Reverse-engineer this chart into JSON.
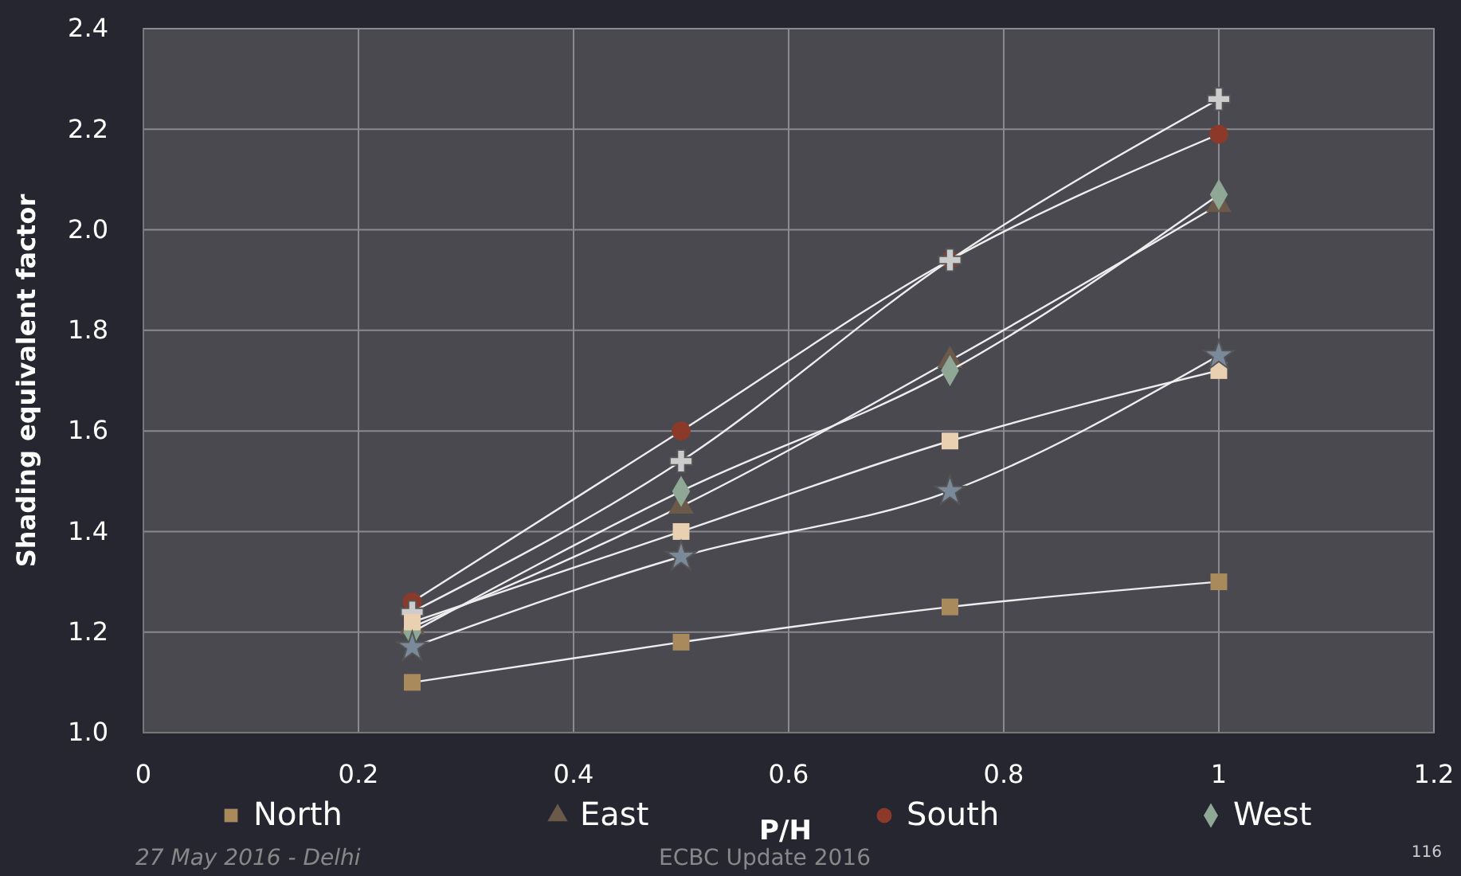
{
  "chart_data": {
    "type": "line",
    "xlabel": "P/H",
    "ylabel": "Shading equivalent factor",
    "xlim": [
      0,
      1.2
    ],
    "xticks": [
      0,
      0.2,
      0.4,
      0.6,
      0.8,
      1,
      1.2
    ],
    "ylim": [
      1,
      2.4
    ],
    "yticks": [
      {
        "value": 1,
        "label": "1.0"
      },
      1.2,
      1.4,
      1.6,
      1.8,
      {
        "value": 2,
        "label": "2.0"
      },
      2.2,
      2.4
    ],
    "x": [
      0.25,
      0.5,
      0.75,
      1
    ],
    "series": [
      {
        "name": "North",
        "color": "#a88a5c",
        "marker": "square",
        "values": [
          1.1,
          1.18,
          1.25,
          1.3
        ]
      },
      {
        "name": "East",
        "color": "#6b5a4a",
        "marker": "triangle",
        "values": [
          1.21,
          1.45,
          1.74,
          2.05
        ]
      },
      {
        "name": "South",
        "color": "#8b3a2a",
        "marker": "circle",
        "values": [
          1.26,
          1.6,
          1.94,
          2.19
        ]
      },
      {
        "name": "West",
        "color": "#8fa896",
        "marker": "diamond",
        "values": [
          1.2,
          1.48,
          1.72,
          2.07
        ]
      },
      {
        "color": "#cccccc",
        "marker": "cross",
        "values": [
          1.24,
          1.54,
          1.94,
          2.26
        ]
      },
      {
        "color": "#e8d0b0",
        "marker": "square",
        "values": [
          1.22,
          1.4,
          1.58,
          1.72
        ]
      },
      {
        "color": "#7a8a9a",
        "marker": "star",
        "values": [
          1.17,
          1.35,
          1.48,
          1.75
        ]
      }
    ],
    "grid": true,
    "legend": "bottom",
    "annotations": [
      "27 May 2016 - Delhi",
      "ECBC Update 2016",
      "116"
    ]
  }
}
